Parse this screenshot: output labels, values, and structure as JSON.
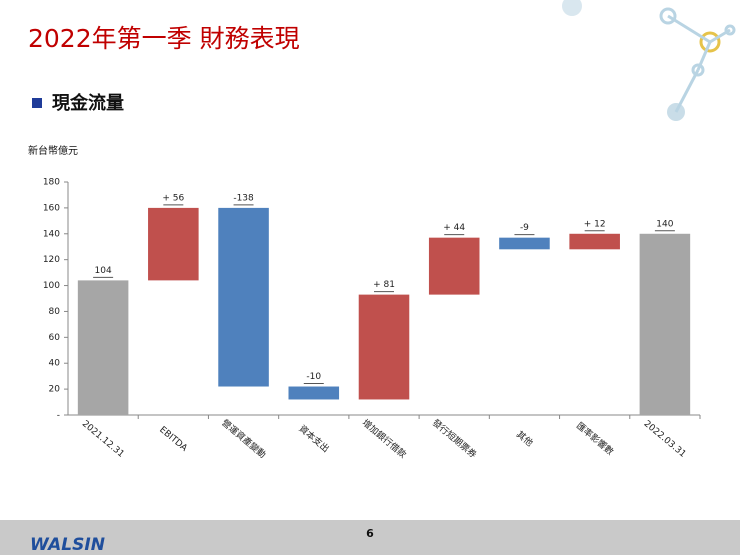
{
  "header": {
    "title": "2022年第一季 財務表現",
    "section": "現金流量"
  },
  "chart_data": {
    "type": "waterfall",
    "ylabel": "新台幣億元",
    "categories": [
      "2021.12.31",
      "EBITDA",
      "營運資產變動",
      "資本支出",
      "增加銀行借款",
      "發行短期票券",
      "其他",
      "匯率影響數",
      "2022.03.31"
    ],
    "measure": [
      "total",
      "relative",
      "relative",
      "relative",
      "relative",
      "relative",
      "relative",
      "relative",
      "total"
    ],
    "values": [
      104,
      56,
      -138,
      -10,
      81,
      44,
      -9,
      12,
      140
    ],
    "value_labels": [
      "104",
      "+ 56",
      "-138",
      "-10",
      "+ 81",
      "+ 44",
      "-9",
      "+ 12",
      "140"
    ],
    "colors": [
      "#a6a6a6",
      "#c0504d",
      "#4f81bd",
      "#4f81bd",
      "#c0504d",
      "#c0504d",
      "#4f81bd",
      "#c0504d",
      "#a6a6a6"
    ],
    "ylim": [
      0,
      180
    ],
    "yticks": [
      {
        "value": 0,
        "label": "-"
      },
      20,
      40,
      60,
      80,
      100,
      120,
      140,
      160,
      180
    ]
  },
  "footer": {
    "page": "6",
    "logo": "WALSIN"
  }
}
